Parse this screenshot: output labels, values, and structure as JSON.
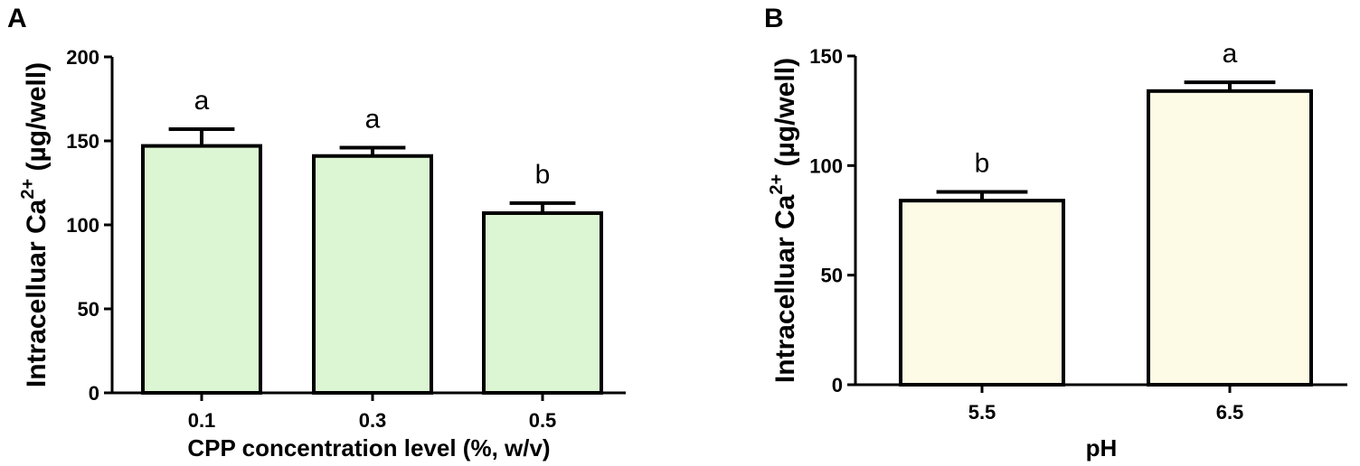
{
  "chart_data": [
    {
      "panel": "A",
      "type": "bar",
      "categories": [
        "0.1",
        "0.3",
        "0.5"
      ],
      "values": [
        147,
        141,
        107
      ],
      "errors": [
        10,
        5,
        6
      ],
      "significance": [
        "a",
        "a",
        "b"
      ],
      "xlabel": "CPP concentration level (%, w/v)",
      "ylabel_main": "Intracelluar Ca",
      "ylabel_sup": "2+",
      "ylabel_unit": " (µg/well)",
      "ylim": [
        0,
        200
      ],
      "yticks": [
        0,
        50,
        100,
        150,
        200
      ],
      "bar_color": "#dcf5d2"
    },
    {
      "panel": "B",
      "type": "bar",
      "categories": [
        "5.5",
        "6.5"
      ],
      "values": [
        84,
        134
      ],
      "errors": [
        4,
        4
      ],
      "significance": [
        "b",
        "a"
      ],
      "xlabel": "pH",
      "ylabel_main": "Intracelluar Ca",
      "ylabel_sup": "2+",
      "ylabel_unit": " (µg/well)",
      "ylim": [
        0,
        150
      ],
      "yticks": [
        0,
        50,
        100,
        150
      ],
      "bar_color": "#fdfbe6"
    }
  ]
}
